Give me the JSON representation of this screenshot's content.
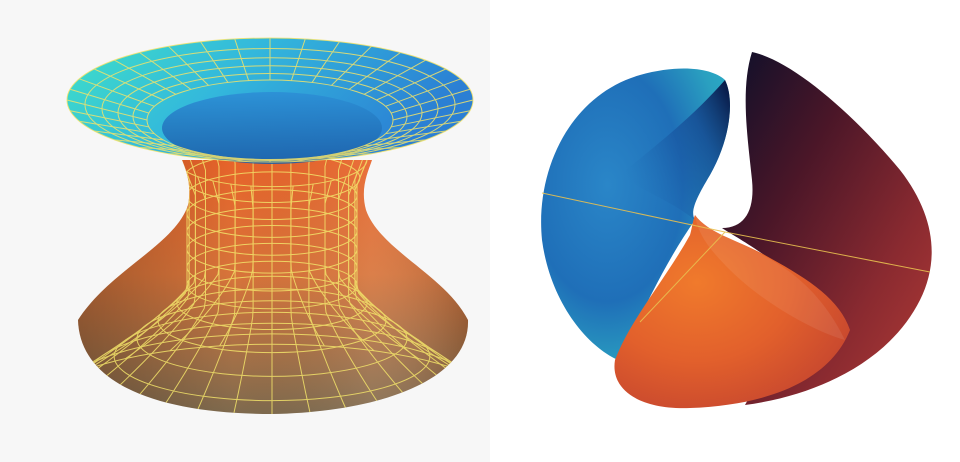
{
  "image": {
    "panels": [
      {
        "id": "left",
        "subject": "wireframe-hyperboloid-surface",
        "gradient_colors": [
          "#3fd6c8",
          "#2b8fd8",
          "#e0662a",
          "#8c6a48"
        ],
        "grid_color": "#f2e36a"
      },
      {
        "id": "right",
        "subject": "smooth-cusp-surface",
        "gradient_colors": [
          "#1f6fb8",
          "#2aa2c2",
          "#0a1a4a",
          "#5a1a2a",
          "#e8692c",
          "#b8403a"
        ],
        "axis_color": "#e8c050"
      }
    ]
  }
}
